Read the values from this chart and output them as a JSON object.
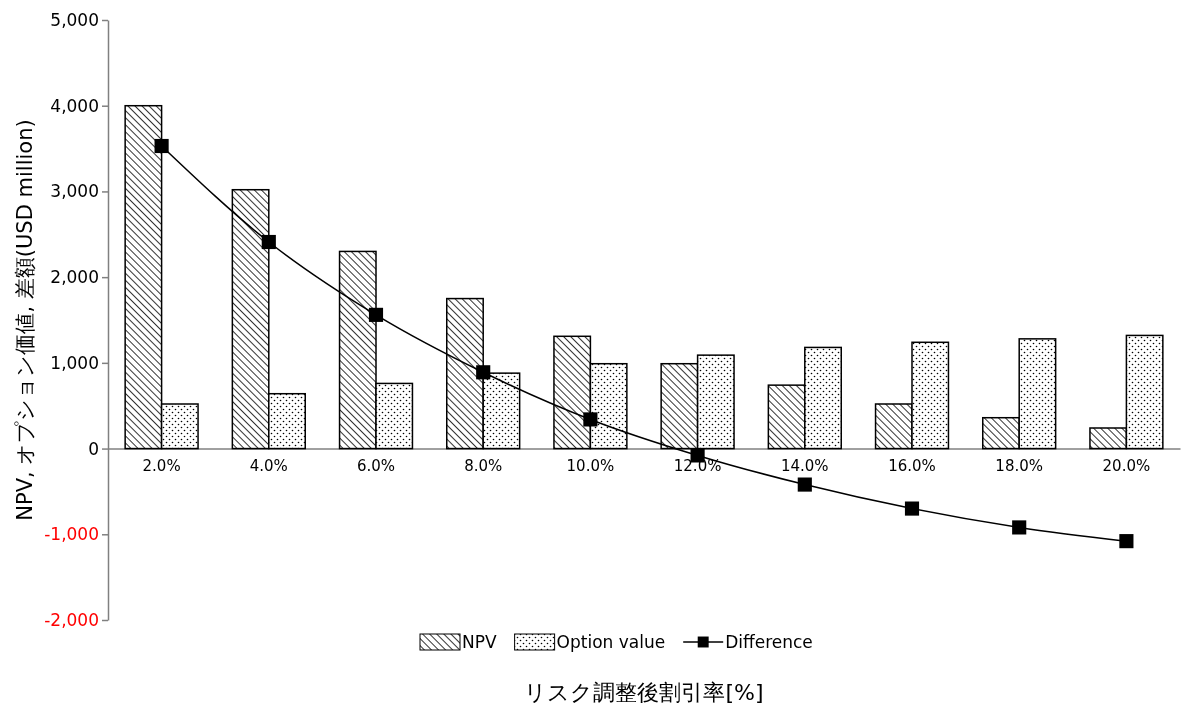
{
  "chart_data": {
    "type": "bar",
    "xlabel": "リスク調整後割引率[%]",
    "ylabel": "NPV, オプション価値, 差額(USD million)",
    "categories": [
      "2.0%",
      "4.0%",
      "6.0%",
      "8.0%",
      "10.0%",
      "12.0%",
      "14.0%",
      "16.0%",
      "18.0%",
      "20.0%"
    ],
    "series": [
      {
        "name": "NPV",
        "color": "#000000",
        "values": [
          4000,
          3020,
          2300,
          1750,
          1310,
          990,
          740,
          520,
          360,
          240
        ]
      },
      {
        "name": "Option value",
        "color": "#000000",
        "values": [
          520,
          640,
          760,
          880,
          990,
          1090,
          1180,
          1240,
          1280,
          1320
        ]
      },
      {
        "name": "Difference",
        "type": "line",
        "color": "#000000",
        "marker": "square",
        "values": [
          3530,
          2410,
          1560,
          890,
          340,
          -80,
          -420,
          -700,
          -920,
          -1080
        ]
      }
    ],
    "ylim": [
      -2000,
      5000
    ],
    "yticks": [
      {
        "value": -2000,
        "label": "-2,000"
      },
      {
        "value": -1000,
        "label": "-1,000"
      },
      0,
      {
        "value": 1000,
        "label": "1,000"
      },
      {
        "value": 2000,
        "label": "2,000"
      },
      {
        "value": 3000,
        "label": "3,000"
      },
      {
        "value": 4000,
        "label": "4,000"
      },
      {
        "value": 5000,
        "label": "5,000"
      }
    ],
    "grid": false,
    "legend": "bottom"
  }
}
